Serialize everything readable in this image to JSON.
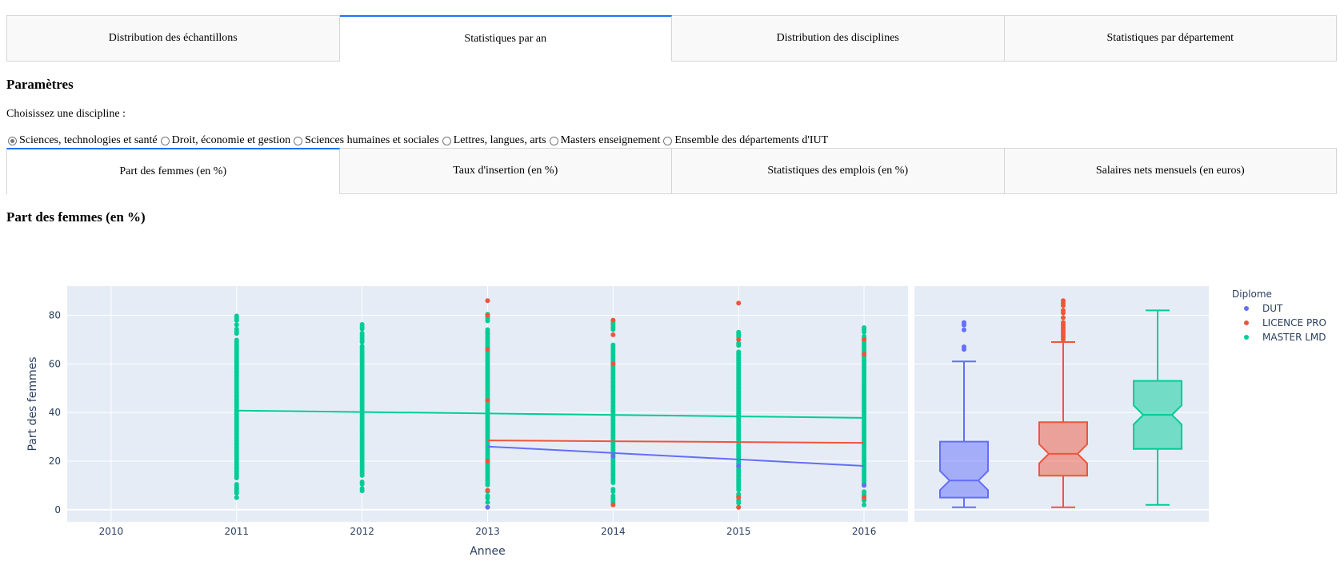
{
  "top_tabs": [
    {
      "label": "Distribution des échantillons",
      "selected": false
    },
    {
      "label": "Statistiques par an",
      "selected": true
    },
    {
      "label": "Distribution des disciplines",
      "selected": false
    },
    {
      "label": "Statistiques par département",
      "selected": false
    }
  ],
  "params_heading": "Paramètres",
  "discipline_label": "Choisissez une discipline :",
  "disciplines": [
    {
      "label": "Sciences, technologies et santé",
      "checked": true
    },
    {
      "label": "Droit, économie et gestion",
      "checked": false
    },
    {
      "label": "Sciences humaines et sociales",
      "checked": false
    },
    {
      "label": "Lettres, langues, arts",
      "checked": false
    },
    {
      "label": "Masters enseignement",
      "checked": false
    },
    {
      "label": "Ensemble des départements d'IUT",
      "checked": false
    }
  ],
  "sub_tabs": [
    {
      "label": "Part des femmes (en %)",
      "selected": true
    },
    {
      "label": "Taux d'insertion (en %)",
      "selected": false
    },
    {
      "label": "Statistiques des emplois (en %)",
      "selected": false
    },
    {
      "label": "Salaires nets mensuels (en euros)",
      "selected": false
    }
  ],
  "section_title": "Part des femmes (en %)",
  "chart_data": [
    {
      "type": "scatter",
      "xlabel": "Annee",
      "ylabel": "Part des femmes",
      "xlim": [
        2009.65,
        2016.35
      ],
      "ylim": [
        -5,
        92
      ],
      "x_ticks": [
        2010,
        2011,
        2012,
        2013,
        2014,
        2015,
        2016
      ],
      "y_ticks": [
        0,
        20,
        40,
        60,
        80
      ],
      "legend_title": "Diplome",
      "legend_position": "top-right",
      "series": [
        {
          "name": "DUT",
          "color": "#636efa",
          "points": [
            [
              2013,
              1
            ],
            [
              2014,
              22
            ],
            [
              2015,
              18
            ],
            [
              2016,
              10
            ]
          ],
          "trend": [
            [
              2013,
              26
            ],
            [
              2016,
              18
            ]
          ]
        },
        {
          "name": "LICENCE PRO",
          "color": "#ef553b",
          "points": [
            [
              2013,
              86
            ],
            [
              2013,
              80
            ],
            [
              2013,
              66
            ],
            [
              2013,
              45
            ],
            [
              2013,
              20
            ],
            [
              2013,
              8
            ],
            [
              2014,
              78
            ],
            [
              2014,
              72
            ],
            [
              2014,
              60
            ],
            [
              2014,
              2
            ],
            [
              2015,
              85
            ],
            [
              2015,
              70
            ],
            [
              2015,
              5
            ],
            [
              2015,
              1
            ],
            [
              2016,
              70
            ],
            [
              2016,
              64
            ],
            [
              2016,
              5
            ]
          ],
          "trend": [
            [
              2013,
              28.5
            ],
            [
              2016,
              27.5
            ]
          ]
        },
        {
          "name": "MASTER LMD",
          "color": "#00cc96",
          "ranges": [
            {
              "x": 2011,
              "min": 5,
              "max": 80
            },
            {
              "x": 2012,
              "min": 6,
              "max": 78
            },
            {
              "x": 2013,
              "min": 3,
              "max": 82
            },
            {
              "x": 2014,
              "min": 3,
              "max": 80
            },
            {
              "x": 2015,
              "min": 1,
              "max": 77
            },
            {
              "x": 2016,
              "min": 2,
              "max": 76
            }
          ],
          "trend": [
            [
              2011,
              40.8
            ],
            [
              2016,
              37.8
            ]
          ]
        }
      ]
    },
    {
      "type": "box",
      "ylim": [
        -5,
        92
      ],
      "boxes": [
        {
          "name": "DUT",
          "color": "#636efa",
          "min": 1,
          "q1": 5,
          "median": 12,
          "q3": 28,
          "max": 61,
          "outliers": [
            67,
            66,
            74,
            76,
            77
          ]
        },
        {
          "name": "LICENCE PRO",
          "color": "#ef553b",
          "min": 1,
          "q1": 14,
          "median": 23,
          "q3": 36,
          "max": 69,
          "outliers": [
            70,
            71,
            72,
            73,
            74,
            75,
            76,
            77,
            79,
            81,
            82,
            84,
            85,
            86
          ]
        },
        {
          "name": "MASTER LMD",
          "color": "#00cc96",
          "min": 2,
          "q1": 25,
          "median": 39,
          "q3": 53,
          "max": 82,
          "outliers": []
        }
      ]
    }
  ]
}
